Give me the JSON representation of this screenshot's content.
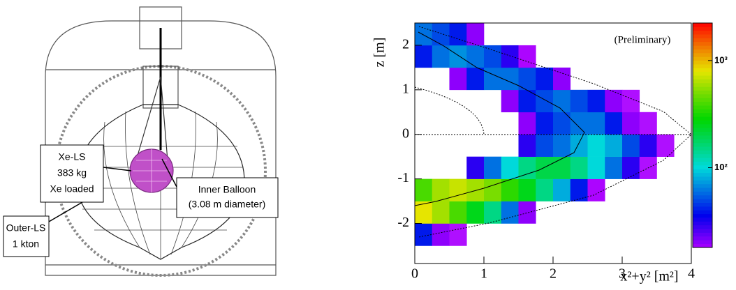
{
  "diagram": {
    "labels": {
      "inner_balloon": [
        "Inner Balloon",
        "(3.08 m diameter)"
      ],
      "xe_ls": [
        "Xe-LS",
        "383 kg",
        "Xe loaded"
      ],
      "outer_ls": [
        "Outer-LS",
        "1 kton"
      ]
    }
  },
  "chart_data": {
    "type": "heatmap",
    "annotation": "(Preliminary)",
    "xlabel": "x²+y² [m²]",
    "ylabel": "z [m]",
    "xlim": [
      0,
      4
    ],
    "ylim": [
      -2.9,
      2.5
    ],
    "xticks": [
      0,
      1,
      2,
      3,
      4
    ],
    "yticks": [
      -2,
      -1,
      0,
      1,
      2
    ],
    "zlim": [
      18,
      2240
    ],
    "zlog": true,
    "zticks": [
      {
        "value": 100,
        "label": "10²"
      },
      {
        "value": 1000,
        "label": "10³"
      }
    ],
    "xbins": [
      0,
      0.25,
      0.5,
      0.75,
      1,
      1.25,
      1.5,
      1.75,
      2,
      2.25,
      2.5,
      2.75,
      3,
      3.25,
      3.5,
      3.75,
      4
    ],
    "ybins": [
      -2.5,
      -2,
      -1.5,
      -1,
      -0.5,
      0,
      0.5,
      1,
      1.5,
      2,
      2.5
    ],
    "values": [
      [
        40,
        20,
        10,
        null,
        null,
        null,
        null,
        null,
        null,
        null,
        null,
        null,
        null,
        null,
        null,
        null
      ],
      [
        800,
        600,
        400,
        250,
        150,
        60,
        20,
        null,
        null,
        null,
        null,
        null,
        null,
        null,
        null,
        null
      ],
      [
        400,
        600,
        700,
        600,
        500,
        350,
        250,
        150,
        80,
        40,
        15,
        null,
        null,
        null,
        null,
        null
      ],
      [
        null,
        null,
        null,
        30,
        60,
        100,
        150,
        200,
        200,
        150,
        100,
        60,
        30,
        10,
        null,
        null
      ],
      [
        null,
        null,
        null,
        null,
        null,
        null,
        30,
        50,
        60,
        80,
        100,
        80,
        50,
        30,
        10,
        null
      ],
      [
        null,
        null,
        null,
        null,
        null,
        null,
        20,
        40,
        50,
        60,
        60,
        40,
        20,
        10,
        null,
        null
      ],
      [
        null,
        null,
        null,
        null,
        null,
        20,
        40,
        50,
        60,
        50,
        40,
        20,
        10,
        null,
        null,
        null
      ],
      [
        null,
        null,
        20,
        40,
        60,
        60,
        50,
        40,
        20,
        null,
        null,
        null,
        null,
        null,
        null,
        null
      ],
      [
        40,
        60,
        70,
        60,
        50,
        30,
        15,
        null,
        null,
        null,
        null,
        null,
        null,
        null,
        null,
        null
      ],
      [
        60,
        50,
        40,
        20,
        null,
        null,
        null,
        null,
        null,
        null,
        null,
        null,
        null,
        null,
        null,
        null
      ]
    ]
  }
}
